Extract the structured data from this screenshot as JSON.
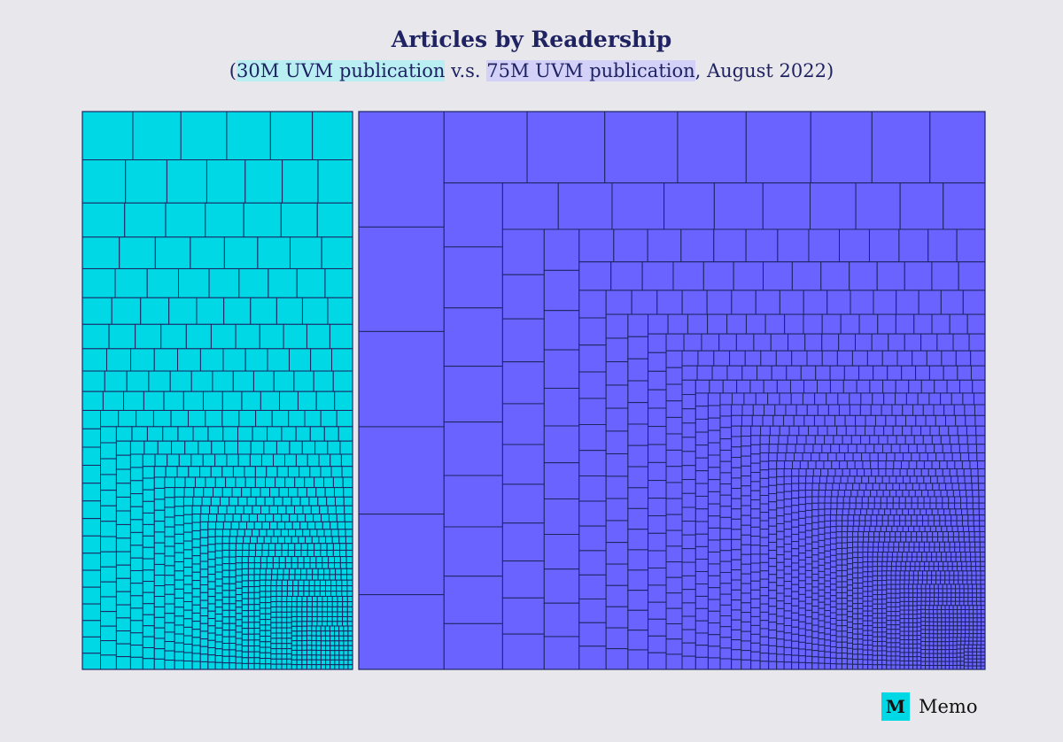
{
  "chart_data": {
    "type": "treemap",
    "title": "Articles by Readership",
    "subtitle": {
      "open": "(",
      "series_a": "30M UVM publication",
      "vs": " v.s. ",
      "series_b": "75M UVM publication",
      "rest": ", August 2022)"
    },
    "series": [
      {
        "name": "30M UVM publication",
        "color": "#00d8e6"
      },
      {
        "name": "75M UVM publication",
        "color": "#6b63ff"
      }
    ],
    "border_color": "#1e2460",
    "grid": false,
    "legend": "none"
  },
  "branding": {
    "logo_letter": "M",
    "logo_text": "Memo",
    "logo_color": "#00d8e6"
  }
}
